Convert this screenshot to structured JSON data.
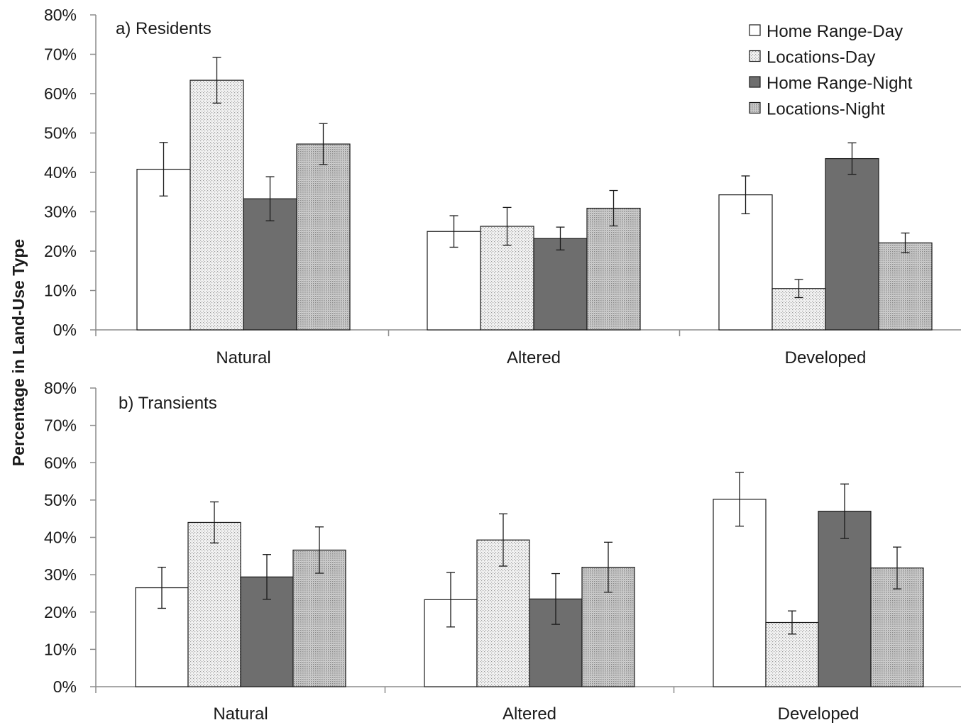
{
  "ylabel": "Percentage in Land-Use Type",
  "legend": [
    {
      "name": "Home Range-Day",
      "pattern": "white"
    },
    {
      "name": "Locations-Day",
      "pattern": "dots-light"
    },
    {
      "name": "Home Range-Night",
      "pattern": "dark"
    },
    {
      "name": "Locations-Night",
      "pattern": "dots-dense"
    }
  ],
  "colors": {
    "bar_outline": "#1a1a1a",
    "axis": "#8c8c8c",
    "dark_fill": "#6e6e6e",
    "dots_light_bg": "#f4f4f4",
    "dots_dense_bg": "#c8c8c8"
  },
  "chart_data": [
    {
      "type": "bar",
      "title": "a) Residents",
      "categories": [
        "Natural",
        "Altered",
        "Developed"
      ],
      "yticks": [
        "0%",
        "10%",
        "20%",
        "30%",
        "40%",
        "50%",
        "60%",
        "70%",
        "80%"
      ],
      "ylim": [
        0,
        80
      ],
      "series": [
        {
          "name": "Home Range-Day",
          "values": [
            40.8,
            25.0,
            34.3
          ],
          "errors": [
            6.8,
            4.0,
            4.8
          ]
        },
        {
          "name": "Locations-Day",
          "values": [
            63.4,
            26.3,
            10.5
          ],
          "errors": [
            5.8,
            4.8,
            2.3
          ]
        },
        {
          "name": "Home Range-Night",
          "values": [
            33.3,
            23.2,
            43.5
          ],
          "errors": [
            5.6,
            2.9,
            4.0
          ]
        },
        {
          "name": "Locations-Night",
          "values": [
            47.2,
            30.9,
            22.1
          ],
          "errors": [
            5.2,
            4.5,
            2.5
          ]
        }
      ]
    },
    {
      "type": "bar",
      "title": "b) Transients",
      "categories": [
        "Natural",
        "Altered",
        "Developed"
      ],
      "yticks": [
        "0%",
        "10%",
        "20%",
        "30%",
        "40%",
        "50%",
        "60%",
        "70%",
        "80%"
      ],
      "ylim": [
        0,
        80
      ],
      "series": [
        {
          "name": "Home Range-Day",
          "values": [
            26.5,
            23.3,
            50.2
          ],
          "errors": [
            5.5,
            7.3,
            7.2
          ]
        },
        {
          "name": "Locations-Day",
          "values": [
            44.0,
            39.3,
            17.2
          ],
          "errors": [
            5.5,
            7.0,
            3.1
          ]
        },
        {
          "name": "Home Range-Night",
          "values": [
            29.4,
            23.5,
            47.0
          ],
          "errors": [
            6.0,
            6.8,
            7.3
          ]
        },
        {
          "name": "Locations-Night",
          "values": [
            36.6,
            32.0,
            31.8
          ],
          "errors": [
            6.2,
            6.7,
            5.6
          ]
        }
      ]
    }
  ]
}
